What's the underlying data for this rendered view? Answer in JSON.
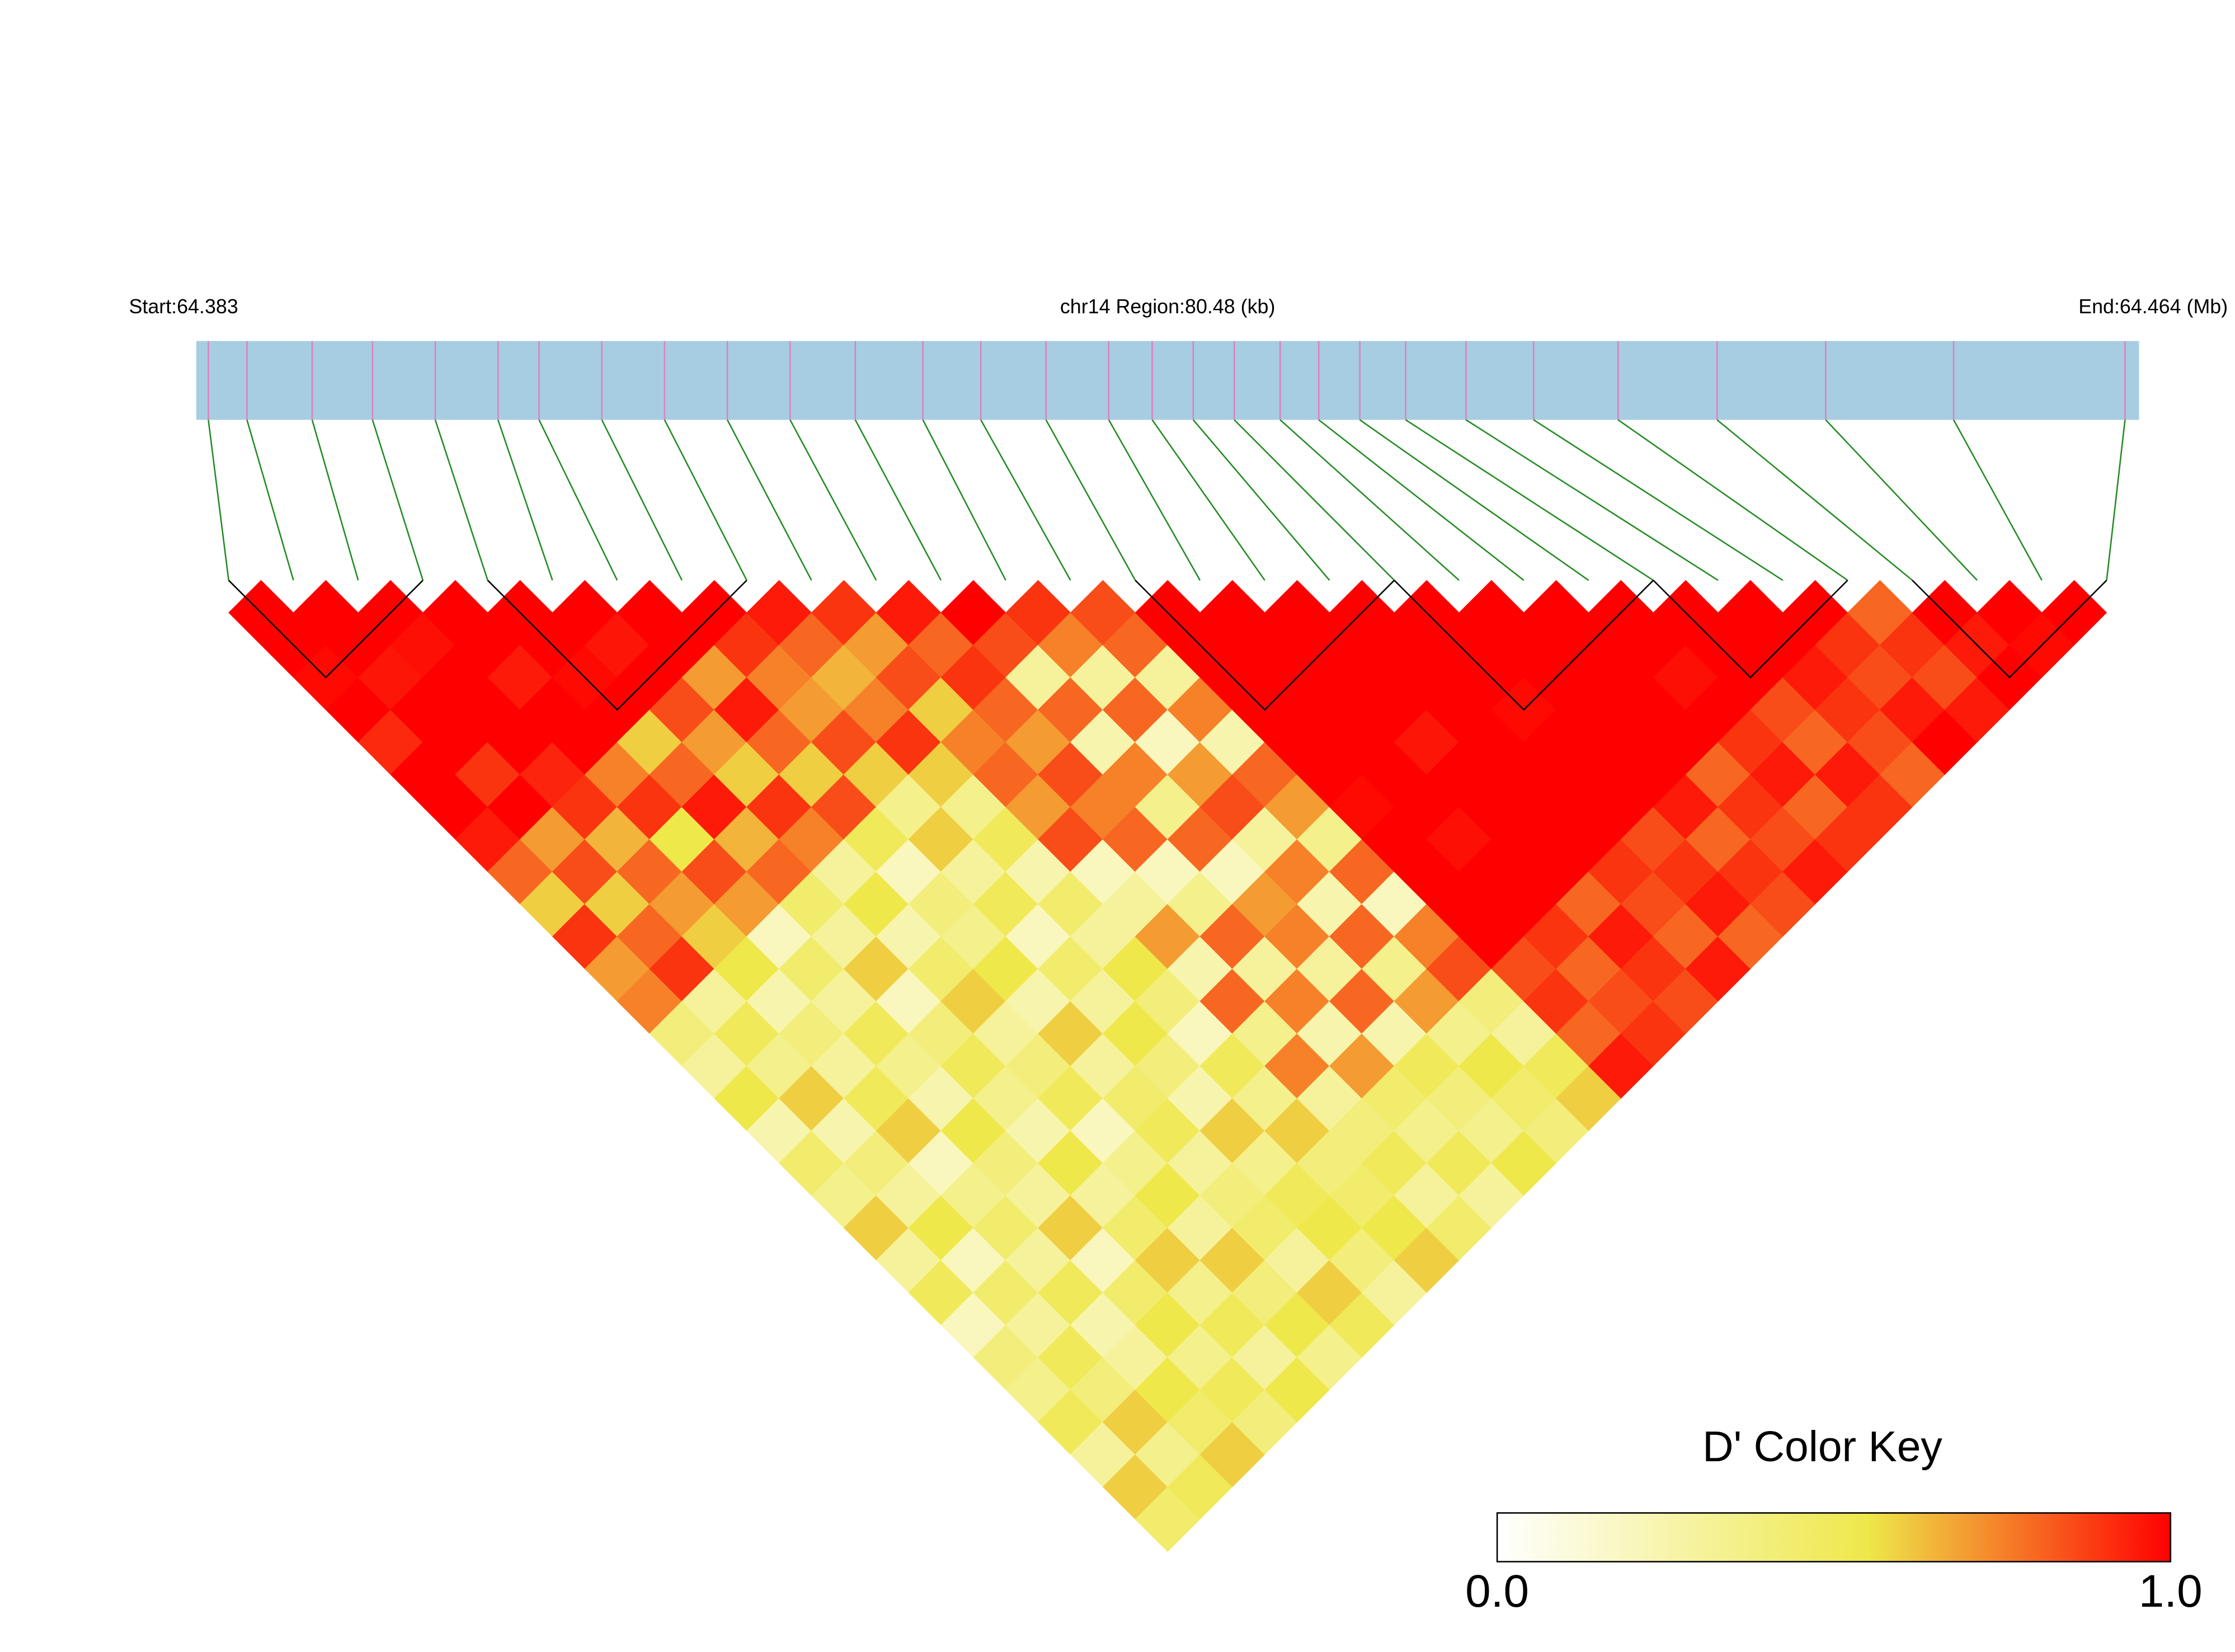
{
  "chart_data": {
    "type": "ld_heatmap",
    "start_label": "Start:64.383",
    "region_label": "chr14 Region:80.48 (kb)",
    "end_label": "End:64.464 (Mb)",
    "key_title": "D' Color Key",
    "xlim": [
      0,
      80.48
    ],
    "positions": [
      0.5,
      2.1,
      4.8,
      7.3,
      9.9,
      12.5,
      14.2,
      16.8,
      19.4,
      22.0,
      24.6,
      27.3,
      30.1,
      32.5,
      35.2,
      37.8,
      39.6,
      41.3,
      43.0,
      44.9,
      46.5,
      48.2,
      50.1,
      52.6,
      55.4,
      58.9,
      63.0,
      67.5,
      72.8,
      79.9
    ],
    "dprime": [
      [
        1,
        1,
        0.98,
        1,
        0.92,
        1,
        1,
        0.95,
        0.8,
        0.6,
        0.9,
        0.7,
        0.75,
        0.4,
        0.3,
        0.55,
        0.25,
        0.45,
        0.35,
        0.6,
        0.3,
        0.5,
        0.2,
        0.4,
        0.35,
        0.5,
        0.3,
        0.6,
        0.45
      ],
      [
        1,
        1,
        0.96,
        1,
        1,
        0.9,
        1,
        0.7,
        0.85,
        0.6,
        0.8,
        0.9,
        0.3,
        0.5,
        0.35,
        0.6,
        0.25,
        0.4,
        0.3,
        0.55,
        0.2,
        0.45,
        0.3,
        0.5,
        0.4,
        0.6,
        0.35,
        0.5
      ],
      [
        1,
        0.97,
        1,
        1,
        1,
        0.93,
        0.9,
        0.65,
        0.8,
        0.7,
        0.6,
        0.55,
        0.25,
        0.4,
        0.3,
        0.5,
        0.6,
        0.2,
        0.35,
        0.45,
        0.3,
        0.5,
        0.25,
        0.3,
        0.55,
        0.45,
        0.6
      ],
      [
        1,
        1,
        0.95,
        1,
        1,
        0.75,
        0.9,
        0.55,
        0.85,
        0.7,
        0.2,
        0.45,
        0.3,
        0.5,
        0.35,
        0.25,
        0.55,
        0.4,
        0.3,
        0.6,
        0.2,
        0.45,
        0.55,
        0.35,
        0.5,
        0.4
      ],
      [
        1,
        1,
        0.98,
        1,
        0.6,
        0.8,
        0.95,
        0.65,
        0.8,
        0.45,
        0.3,
        0.6,
        0.2,
        0.4,
        0.5,
        0.35,
        0.25,
        0.55,
        0.3,
        0.45,
        0.6,
        0.35,
        0.5,
        0.3,
        0.55
      ],
      [
        1,
        0.96,
        1,
        0.85,
        0.7,
        0.6,
        0.9,
        0.75,
        0.3,
        0.55,
        0.25,
        0.45,
        0.6,
        0.3,
        0.4,
        0.5,
        0.2,
        0.35,
        0.55,
        0.3,
        0.6,
        0.4,
        0.55,
        0.35
      ],
      [
        1,
        1,
        0.7,
        0.95,
        0.8,
        0.6,
        0.85,
        0.5,
        0.2,
        0.4,
        0.35,
        0.55,
        0.25,
        0.6,
        0.3,
        0.45,
        0.5,
        0.3,
        0.4,
        0.45,
        0.3,
        0.6,
        0.5
      ],
      [
        1,
        0.9,
        0.75,
        0.7,
        0.85,
        0.6,
        0.35,
        0.6,
        0.3,
        0.5,
        0.2,
        0.45,
        0.3,
        0.55,
        0.4,
        0.25,
        0.6,
        0.35,
        0.5,
        0.55,
        0.4,
        0.3
      ],
      [
        0.95,
        0.8,
        0.65,
        0.75,
        0.9,
        0.6,
        0.35,
        0.5,
        0.25,
        0.45,
        0.3,
        0.55,
        0.4,
        0.2,
        0.5,
        0.35,
        0.6,
        0.4,
        0.45,
        0.55,
        0.6
      ],
      [
        0.9,
        0.7,
        0.85,
        0.6,
        0.75,
        0.8,
        0.7,
        0.85,
        0.2,
        0.3,
        0.7,
        0.25,
        0.8,
        0.35,
        0.75,
        0.3,
        0.4,
        0.5,
        0.3,
        0.45
      ],
      [
        0.95,
        0.8,
        0.9,
        0.8,
        0.7,
        0.85,
        0.75,
        0.8,
        0.2,
        0.35,
        0.8,
        0.3,
        0.75,
        0.25,
        0.7,
        0.45,
        0.35,
        0.5,
        0.3
      ],
      [
        1,
        0.85,
        0.3,
        0.8,
        0.25,
        0.75,
        0.35,
        0.8,
        0.2,
        0.7,
        0.75,
        0.3,
        0.8,
        0.25,
        0.5,
        0.4,
        0.35,
        0.55
      ],
      [
        0.9,
        0.75,
        0.3,
        0.8,
        0.2,
        0.7,
        0.85,
        0.3,
        0.75,
        0.25,
        0.8,
        0.35,
        0.7,
        0.35,
        0.55,
        0.45,
        0.4
      ],
      [
        0.85,
        0.8,
        0.3,
        0.75,
        0.25,
        0.8,
        0.7,
        0.35,
        0.8,
        0.2,
        0.75,
        0.85,
        0.4,
        0.3,
        0.5,
        0.6
      ],
      [
        1,
        1,
        1,
        1,
        1,
        1,
        0.98,
        1,
        1,
        1,
        1,
        0.85,
        0.9,
        0.8,
        0.95
      ],
      [
        1,
        1,
        1,
        1,
        1,
        1,
        1,
        0.97,
        1,
        1,
        0.9,
        0.8,
        0.85,
        0.9
      ],
      [
        1,
        1,
        1,
        1,
        0.96,
        1,
        1,
        1,
        1,
        0.8,
        0.95,
        0.9,
        0.85
      ],
      [
        1,
        1,
        1,
        1,
        1,
        1,
        1,
        1,
        0.9,
        0.85,
        0.8,
        0.95
      ],
      [
        1,
        1,
        1,
        0.98,
        1,
        1,
        1,
        0.85,
        0.9,
        0.95,
        0.8
      ],
      [
        1,
        1,
        1,
        1,
        1,
        1,
        0.95,
        0.8,
        0.9,
        0.85
      ],
      [
        1,
        1,
        1,
        1,
        1,
        0.8,
        0.9,
        0.85,
        0.95
      ],
      [
        1,
        1,
        0.97,
        1,
        0.9,
        0.95,
        0.8,
        0.9
      ],
      [
        1,
        1,
        1,
        0.85,
        0.8,
        0.95,
        0.9
      ],
      [
        1,
        1,
        0.95,
        0.9,
        0.85,
        0.8
      ],
      [
        1,
        0.9,
        0.85,
        0.95,
        1
      ],
      [
        0.8,
        0.9,
        0.85,
        0.95
      ],
      [
        1,
        0.95,
        1
      ],
      [
        1,
        0.98
      ],
      [
        1
      ]
    ],
    "blocks": [
      [
        0,
        3
      ],
      [
        4,
        8
      ],
      [
        14,
        18
      ],
      [
        18,
        22
      ],
      [
        22,
        25
      ],
      [
        26,
        29
      ]
    ],
    "bar_color": "#a6cde2",
    "snp_tick_color": "#e07fbf",
    "link_color": "#228b22",
    "block_outline_color": "#000000",
    "color_scale": [
      [
        0,
        "#ffffff"
      ],
      [
        0.55,
        "#eee84a"
      ],
      [
        1,
        "#ff0000"
      ]
    ],
    "key_lim": [
      0,
      1
    ],
    "key_ticks": [
      {
        "value": 0,
        "label": "0.0"
      },
      {
        "value": 1,
        "label": "1.0"
      }
    ]
  }
}
